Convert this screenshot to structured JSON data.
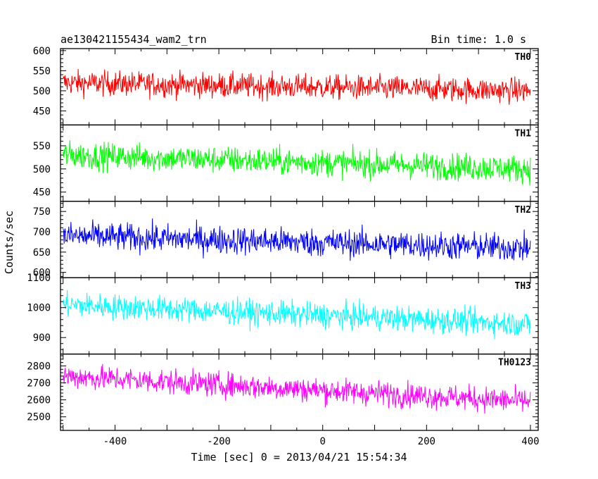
{
  "header": {
    "title": "ae130421155434_wam2_trn",
    "bin_time": "Bin time: 1.0 s"
  },
  "chart_data": {
    "type": "line",
    "xlabel": "Time [sec] 0 = 2013/04/21 15:54:34",
    "ylabel": "Counts/sec",
    "xlim": [
      -505,
      415
    ],
    "xticks": [
      -400,
      -200,
      0,
      200,
      400
    ],
    "panels": [
      {
        "name": "TH0",
        "color": "#ff0000",
        "ylim": [
          415,
          605
        ],
        "yticks": [
          450,
          500,
          550,
          600
        ],
        "mean_start": 520,
        "mean_end": 500,
        "noise": 40
      },
      {
        "name": "TH1",
        "color": "#00ff00",
        "ylim": [
          430,
          595
        ],
        "yticks": [
          450,
          500,
          550
        ],
        "mean_start": 530,
        "mean_end": 500,
        "noise": 38
      },
      {
        "name": "TH2",
        "color": "#0000ff",
        "ylim": [
          587,
          775
        ],
        "yticks": [
          600,
          650,
          700,
          750
        ],
        "mean_start": 690,
        "mean_end": 660,
        "noise": 45
      },
      {
        "name": "TH3",
        "color": "#00ffff",
        "ylim": [
          845,
          1100
        ],
        "yticks": [
          900,
          1000,
          1100
        ],
        "mean_start": 1010,
        "mean_end": 945,
        "noise": 55
      },
      {
        "name": "TH0123",
        "color": "#ff00ff",
        "ylim": [
          2420,
          2870
        ],
        "yticks": [
          2500,
          2600,
          2700,
          2800
        ],
        "mean_start": 2740,
        "mean_end": 2590,
        "noise": 95
      }
    ],
    "x_start": -500,
    "x_end": 400,
    "grid": false,
    "legend": "none"
  }
}
